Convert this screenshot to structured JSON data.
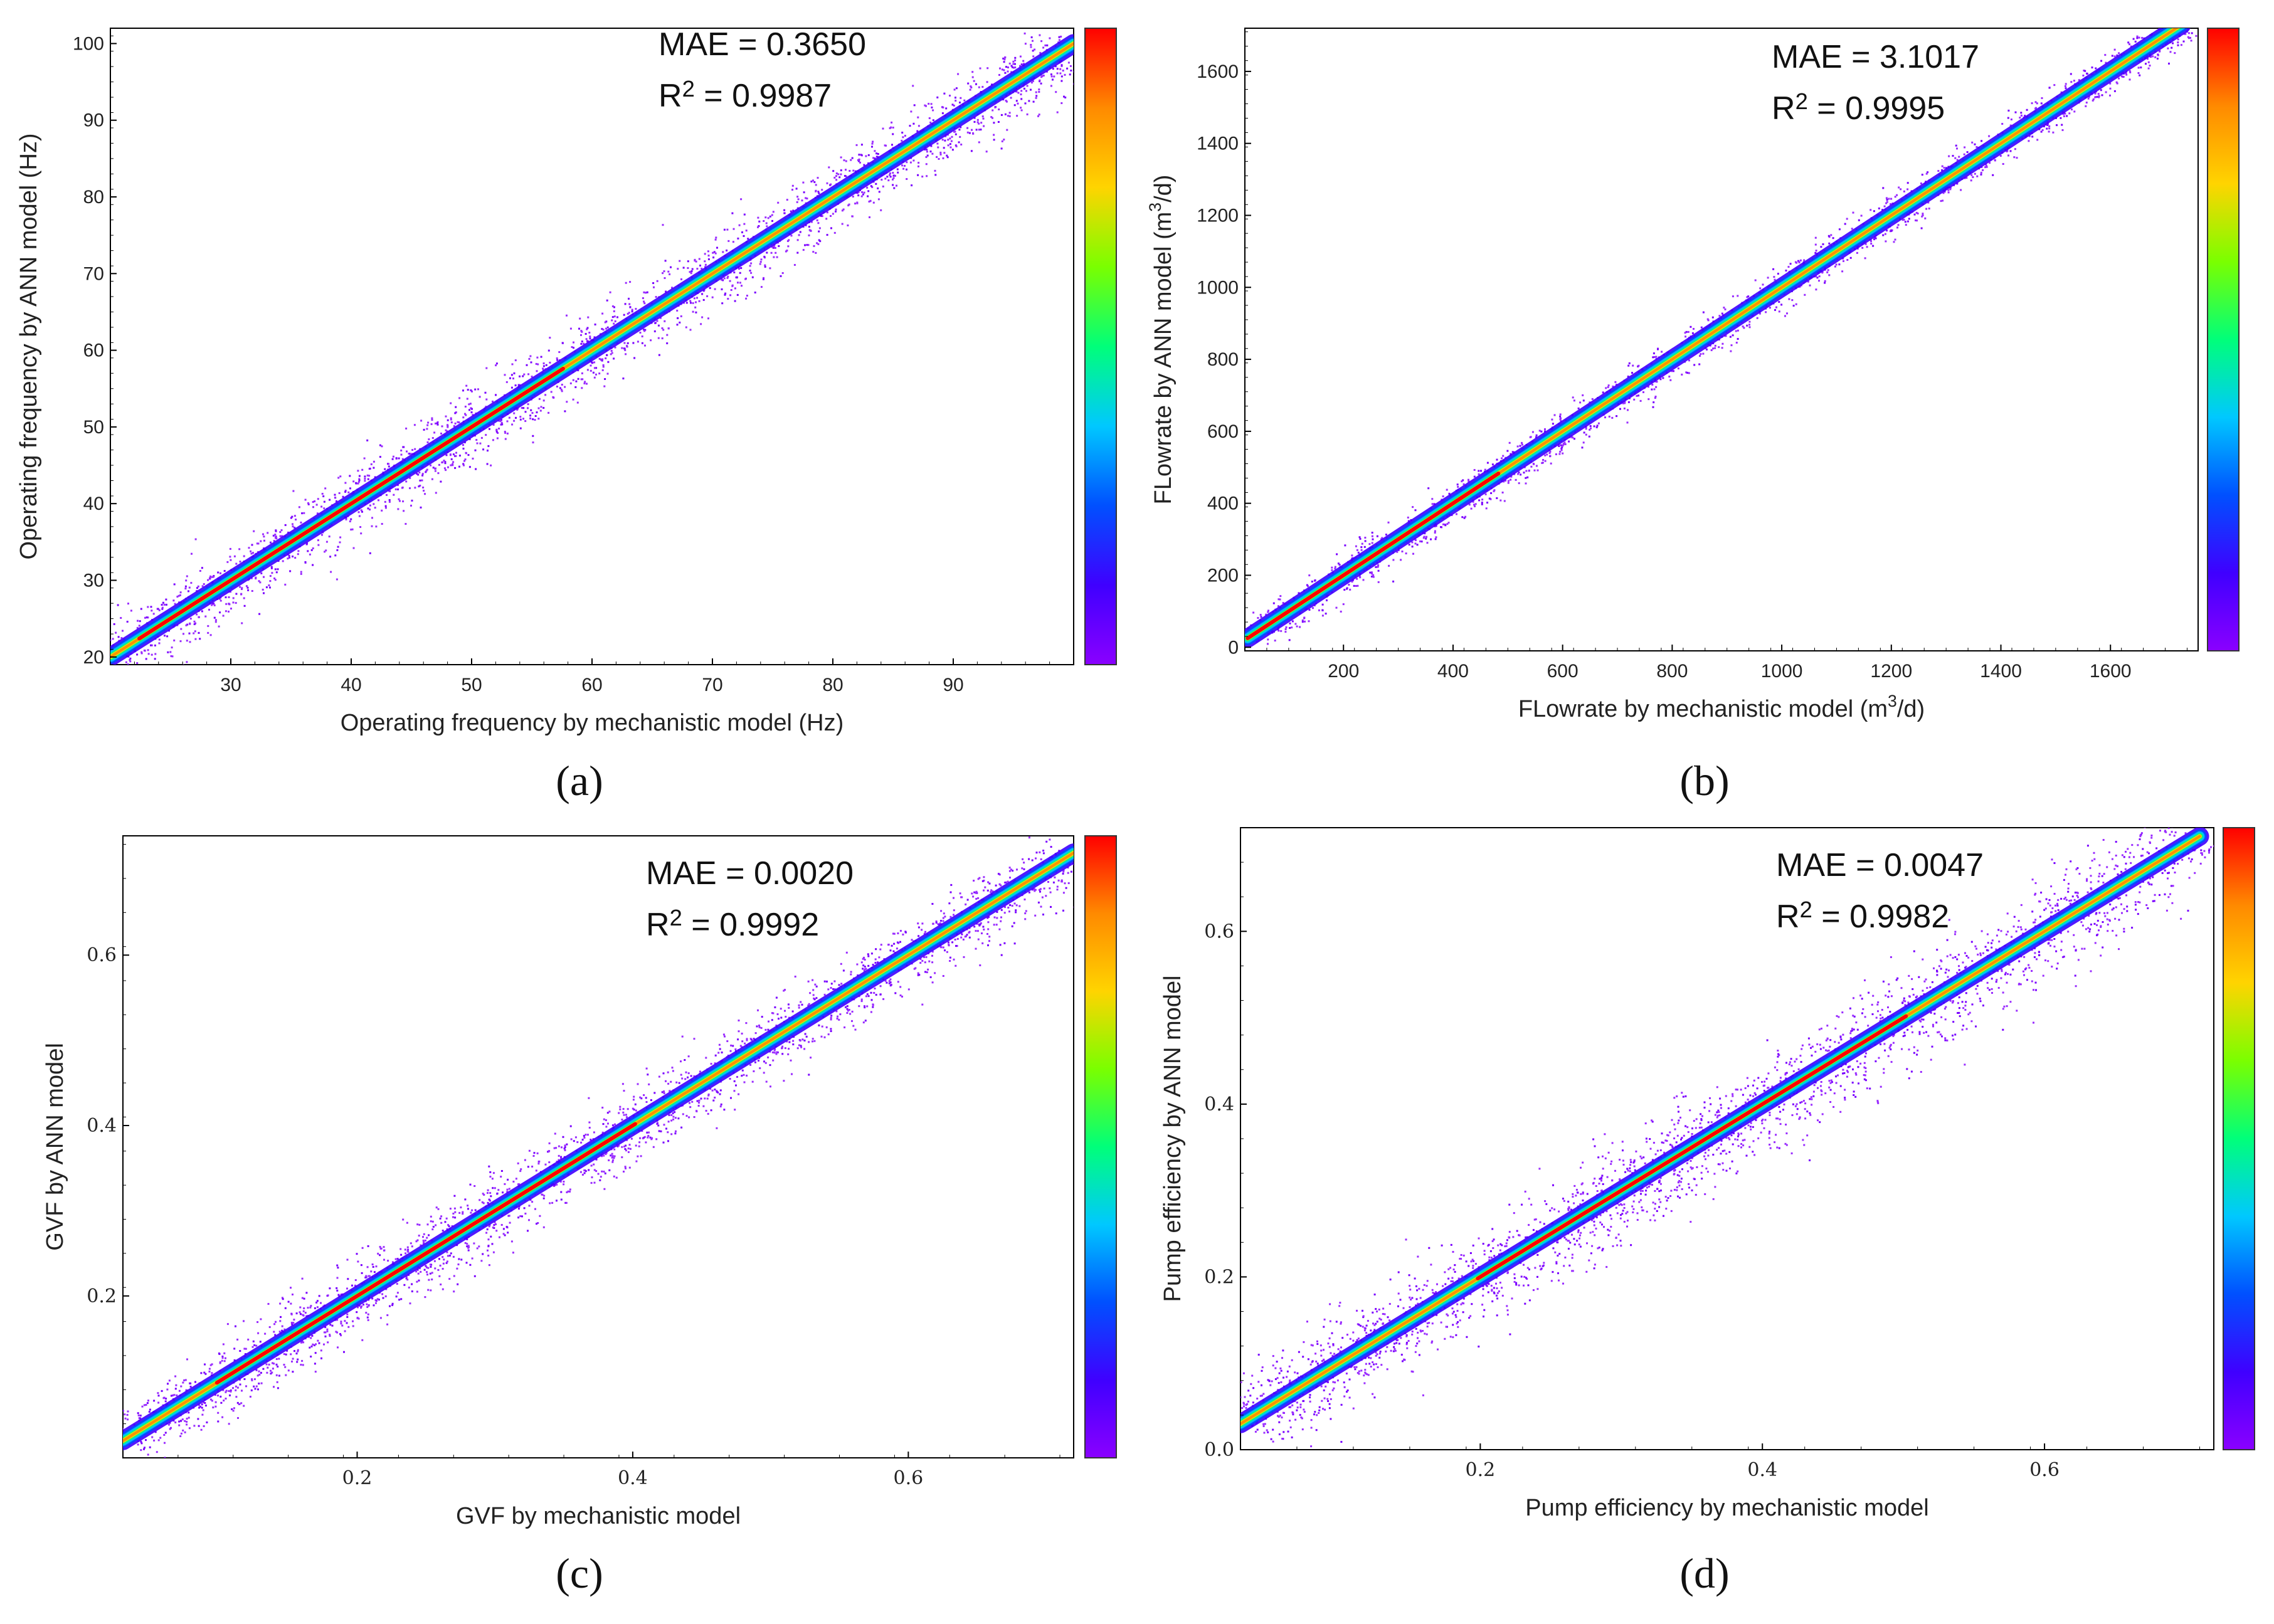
{
  "colors": {
    "colormap": [
      "#8a00ff",
      "#3f00ff",
      "#0050ff",
      "#00c8ff",
      "#00ff7a",
      "#7aff00",
      "#ffd400",
      "#ff8a00",
      "#ff0000"
    ],
    "axis": "#000000",
    "background": "#ffffff"
  },
  "chart_data": [
    {
      "panel": "(a)",
      "type": "scatter",
      "density": true,
      "xlabel": "Operating frequency by mechanistic model (Hz)",
      "ylabel": "Operating frequency by ANN model (Hz)",
      "xlim": [
        20,
        100
      ],
      "ylim": [
        19,
        102
      ],
      "xticks": [
        30,
        40,
        50,
        60,
        70,
        80,
        90
      ],
      "yticks": [
        20,
        30,
        40,
        50,
        60,
        70,
        80,
        90,
        100
      ],
      "tick_decimals": 0,
      "tick_font": "sans",
      "stats": {
        "mae": "MAE = 0.3650",
        "r2_prefix": "R",
        "r2_sup": "2",
        "r2_value": " = 0.9987"
      },
      "diagonal": {
        "x_start": 20,
        "x_end": 100
      },
      "density_peak": 40,
      "spread": 1.0
    },
    {
      "panel": "(b)",
      "type": "scatter",
      "density": true,
      "xlabel": "FLowrate by mechanistic model (m3/d)",
      "xlabel_parts": {
        "pre": "FLowrate by mechanistic model (m",
        "sup": "3",
        "post": "/d)"
      },
      "ylabel_parts": {
        "pre": "FLowrate by ANN model (m",
        "sup": "3",
        "post": "/d)"
      },
      "ylabel": "FLowrate by ANN model (m3/d)",
      "xlim": [
        20,
        1760
      ],
      "ylim": [
        -10,
        1720
      ],
      "xticks": [
        200,
        400,
        600,
        800,
        1000,
        1200,
        1400,
        1600
      ],
      "yticks": [
        0,
        200,
        400,
        600,
        800,
        1000,
        1200,
        1400,
        1600
      ],
      "tick_decimals": 0,
      "tick_font": "sans",
      "stats": {
        "mae": "MAE = 3.1017",
        "r2_prefix": "R",
        "r2_sup": "2",
        "r2_value": " = 0.9995"
      },
      "diagonal": {
        "x_start": 25,
        "x_end": 1730
      },
      "density_peak": 100,
      "spread": 12
    },
    {
      "panel": "(c)",
      "type": "scatter",
      "density": true,
      "xlabel": "GVF by mechanistic model",
      "ylabel": "GVF by ANN model",
      "xlim": [
        0.03,
        0.72
      ],
      "ylim": [
        0.01,
        0.74
      ],
      "xticks": [
        0.2,
        0.4,
        0.6
      ],
      "yticks": [
        0.2,
        0.4,
        0.6
      ],
      "tick_decimals": 1,
      "tick_font": "serif",
      "stats": {
        "mae": "MAE =  0.0020",
        "r2_prefix": "R",
        "r2_sup": "2",
        "r2_value": " = 0.9992"
      },
      "diagonal": {
        "x_start": 0.03,
        "x_end": 0.72
      },
      "density_peak": 0.25,
      "spread": 0.009
    },
    {
      "panel": "(d)",
      "type": "scatter",
      "density": true,
      "xlabel": "Pump efficiency by mechanistic model",
      "ylabel": "Pump efficiency by ANN model",
      "xlim": [
        0.03,
        0.72
      ],
      "ylim": [
        0.0,
        0.72
      ],
      "xticks": [
        0.2,
        0.4,
        0.6
      ],
      "yticks": [
        0.0,
        0.2,
        0.4,
        0.6
      ],
      "tick_decimals": 1,
      "tick_font": "serif",
      "stats": {
        "mae": "MAE =  0.0047",
        "r2_prefix": "R",
        "r2_sup": "2",
        "r2_value": " = 0.9982"
      },
      "diagonal": {
        "x_start": 0.03,
        "x_end": 0.71
      },
      "density_peak": 0.35,
      "spread": 0.012
    }
  ]
}
